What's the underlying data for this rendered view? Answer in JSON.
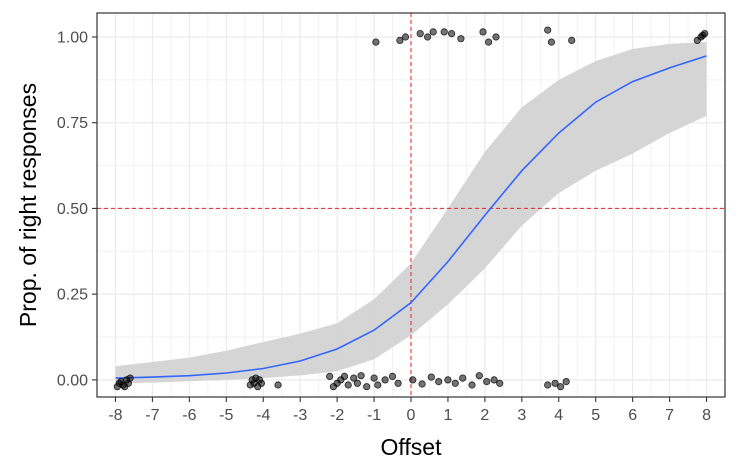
{
  "chart_data": {
    "type": "scatter",
    "title": "",
    "xlabel": "Offset",
    "ylabel": "Prop. of right responses",
    "xlim": [
      -8.5,
      8.5
    ],
    "ylim": [
      -0.05,
      1.07
    ],
    "x_ticks": [
      -8,
      -7,
      -6,
      -5,
      -4,
      -3,
      -2,
      -1,
      0,
      1,
      2,
      3,
      4,
      5,
      6,
      7,
      8
    ],
    "x_tick_labels": [
      "-8",
      "-7",
      "-6",
      "-5",
      "-4",
      "-3",
      "-2",
      "-1",
      "0",
      "1",
      "2",
      "3",
      "4",
      "5",
      "6",
      "7",
      "8"
    ],
    "y_ticks": [
      0,
      0.25,
      0.5,
      0.75,
      1
    ],
    "y_tick_labels": [
      "0.00",
      "0.25",
      "0.50",
      "0.75",
      "1.00"
    ],
    "grid": true,
    "reference_lines": {
      "vertical_x": 0,
      "horizontal_y": 0.5,
      "color": "#e8212a",
      "style": "dashed"
    },
    "fit": {
      "color": "#3366ff",
      "ribbon_color": "#d3d3d3",
      "x": [
        -8,
        -7,
        -6,
        -5,
        -4,
        -3,
        -2,
        -1,
        0,
        1,
        2,
        3,
        4,
        5,
        6,
        7,
        8
      ],
      "y": [
        0.005,
        0.008,
        0.012,
        0.02,
        0.033,
        0.055,
        0.09,
        0.145,
        0.225,
        0.345,
        0.48,
        0.61,
        0.72,
        0.81,
        0.87,
        0.91,
        0.945
      ],
      "lower": [
        -0.01,
        -0.008,
        -0.004,
        0.0,
        0.005,
        0.013,
        0.025,
        0.06,
        0.13,
        0.22,
        0.325,
        0.45,
        0.545,
        0.61,
        0.66,
        0.72,
        0.77
      ],
      "upper": [
        0.04,
        0.052,
        0.065,
        0.085,
        0.11,
        0.135,
        0.165,
        0.235,
        0.34,
        0.5,
        0.665,
        0.795,
        0.875,
        0.93,
        0.965,
        0.98,
        0.985
      ]
    },
    "points": {
      "color": "#000000",
      "opacity": 0.55,
      "data": [
        {
          "x": -7.95,
          "y": -0.02
        },
        {
          "x": -7.9,
          "y": -0.01
        },
        {
          "x": -7.85,
          "y": -0.005
        },
        {
          "x": -7.8,
          "y": -0.015
        },
        {
          "x": -7.75,
          "y": -0.02
        },
        {
          "x": -7.7,
          "y": 0.0
        },
        {
          "x": -7.65,
          "y": -0.01
        },
        {
          "x": -7.6,
          "y": 0.005
        },
        {
          "x": -4.35,
          "y": -0.015
        },
        {
          "x": -4.3,
          "y": 0.0
        },
        {
          "x": -4.25,
          "y": -0.01
        },
        {
          "x": -4.2,
          "y": 0.005
        },
        {
          "x": -4.15,
          "y": -0.02
        },
        {
          "x": -4.1,
          "y": 0.0
        },
        {
          "x": -4.05,
          "y": -0.01
        },
        {
          "x": -3.6,
          "y": -0.015
        },
        {
          "x": -2.2,
          "y": 0.01
        },
        {
          "x": -2.1,
          "y": -0.02
        },
        {
          "x": -2.0,
          "y": -0.01
        },
        {
          "x": -1.9,
          "y": 0.0
        },
        {
          "x": -1.8,
          "y": 0.01
        },
        {
          "x": -1.7,
          "y": -0.015
        },
        {
          "x": -1.55,
          "y": 0.005
        },
        {
          "x": -1.45,
          "y": -0.01
        },
        {
          "x": -1.35,
          "y": 0.012
        },
        {
          "x": -1.2,
          "y": -0.02
        },
        {
          "x": -1.0,
          "y": 0.005
        },
        {
          "x": -0.9,
          "y": -0.015
        },
        {
          "x": -0.7,
          "y": 0.0
        },
        {
          "x": -0.5,
          "y": 0.01
        },
        {
          "x": -0.35,
          "y": -0.01
        },
        {
          "x": 0.05,
          "y": 0.0
        },
        {
          "x": 0.3,
          "y": -0.012
        },
        {
          "x": 0.55,
          "y": 0.008
        },
        {
          "x": 0.75,
          "y": -0.005
        },
        {
          "x": 1.0,
          "y": 0.0
        },
        {
          "x": 1.2,
          "y": -0.01
        },
        {
          "x": 1.4,
          "y": 0.005
        },
        {
          "x": 1.65,
          "y": -0.015
        },
        {
          "x": 1.85,
          "y": 0.012
        },
        {
          "x": 2.05,
          "y": -0.005
        },
        {
          "x": 2.25,
          "y": 0.0
        },
        {
          "x": 2.4,
          "y": -0.01
        },
        {
          "x": 3.7,
          "y": -0.015
        },
        {
          "x": 3.9,
          "y": -0.01
        },
        {
          "x": 4.05,
          "y": -0.02
        },
        {
          "x": 4.2,
          "y": -0.005
        },
        {
          "x": -0.95,
          "y": 0.985
        },
        {
          "x": -0.3,
          "y": 0.99
        },
        {
          "x": -0.15,
          "y": 1.0
        },
        {
          "x": 0.25,
          "y": 1.01
        },
        {
          "x": 0.45,
          "y": 1.0
        },
        {
          "x": 0.6,
          "y": 1.015
        },
        {
          "x": 0.9,
          "y": 1.015
        },
        {
          "x": 1.1,
          "y": 1.01
        },
        {
          "x": 1.35,
          "y": 0.995
        },
        {
          "x": 1.95,
          "y": 1.015
        },
        {
          "x": 2.1,
          "y": 0.985
        },
        {
          "x": 2.3,
          "y": 1.0
        },
        {
          "x": 3.7,
          "y": 1.02
        },
        {
          "x": 3.8,
          "y": 0.985
        },
        {
          "x": 4.35,
          "y": 0.99
        },
        {
          "x": 7.75,
          "y": 0.99
        },
        {
          "x": 7.85,
          "y": 1.0
        },
        {
          "x": 7.9,
          "y": 1.005
        },
        {
          "x": 7.95,
          "y": 1.01
        }
      ]
    }
  }
}
